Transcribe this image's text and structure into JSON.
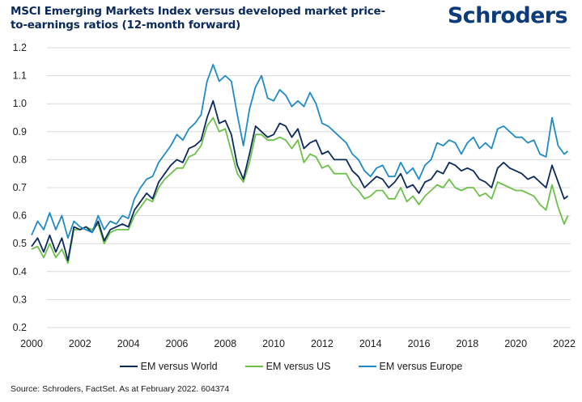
{
  "header": {
    "title": "MSCI Emerging Markets Index versus developed market price-to-earnings ratios (12-month forward)",
    "logo_text": "Schroders"
  },
  "footer": {
    "source": "Source: Schroders, FactSet. As at February 2022. 604374"
  },
  "colors": {
    "title": "#0b2a5b",
    "logo": "#0b3b7a",
    "grid": "#d9d9d9"
  },
  "chart_data": {
    "type": "line",
    "title": "MSCI Emerging Markets Index versus developed market price-to-earnings ratios (12-month forward)",
    "xlabel": "",
    "ylabel": "",
    "xlim": [
      2000,
      2022.2
    ],
    "ylim": [
      0.2,
      1.2
    ],
    "grid": true,
    "legend_position": "bottom-center",
    "x_ticks": [
      "2000",
      "2002",
      "2004",
      "2006",
      "2008",
      "2010",
      "2012",
      "2014",
      "2016",
      "2018",
      "2020",
      "2022"
    ],
    "x_tick_values": [
      2000,
      2002,
      2004,
      2006,
      2008,
      2010,
      2012,
      2014,
      2016,
      2018,
      2020,
      2022
    ],
    "y_ticks": [
      "0.2",
      "0.3",
      "0.4",
      "0.5",
      "0.6",
      "0.7",
      "0.8",
      "0.9",
      "1.0",
      "1.1",
      "1.2"
    ],
    "y_tick_values": [
      0.2,
      0.3,
      0.4,
      0.5,
      0.6,
      0.7,
      0.8,
      0.9,
      1.0,
      1.1,
      1.2
    ],
    "x": [
      2000.0,
      2000.25,
      2000.5,
      2000.75,
      2001.0,
      2001.25,
      2001.5,
      2001.75,
      2002.0,
      2002.25,
      2002.5,
      2002.75,
      2003.0,
      2003.25,
      2003.5,
      2003.75,
      2004.0,
      2004.25,
      2004.5,
      2004.75,
      2005.0,
      2005.25,
      2005.5,
      2005.75,
      2006.0,
      2006.25,
      2006.5,
      2006.75,
      2007.0,
      2007.25,
      2007.5,
      2007.75,
      2008.0,
      2008.25,
      2008.5,
      2008.75,
      2009.0,
      2009.25,
      2009.5,
      2009.75,
      2010.0,
      2010.25,
      2010.5,
      2010.75,
      2011.0,
      2011.25,
      2011.5,
      2011.75,
      2012.0,
      2012.25,
      2012.5,
      2012.75,
      2013.0,
      2013.25,
      2013.5,
      2013.75,
      2014.0,
      2014.25,
      2014.5,
      2014.75,
      2015.0,
      2015.25,
      2015.5,
      2015.75,
      2016.0,
      2016.25,
      2016.5,
      2016.75,
      2017.0,
      2017.25,
      2017.5,
      2017.75,
      2018.0,
      2018.25,
      2018.5,
      2018.75,
      2019.0,
      2019.25,
      2019.5,
      2019.75,
      2020.0,
      2020.25,
      2020.5,
      2020.75,
      2021.0,
      2021.25,
      2021.5,
      2021.75,
      2022.0,
      2022.15
    ],
    "series": [
      {
        "name": "EM versus World",
        "color": "#0b2a5b",
        "values": [
          0.49,
          0.52,
          0.47,
          0.53,
          0.47,
          0.52,
          0.44,
          0.56,
          0.55,
          0.56,
          0.54,
          0.58,
          0.51,
          0.55,
          0.56,
          0.57,
          0.56,
          0.62,
          0.65,
          0.68,
          0.66,
          0.72,
          0.75,
          0.78,
          0.8,
          0.79,
          0.84,
          0.85,
          0.87,
          0.95,
          1.01,
          0.93,
          0.94,
          0.89,
          0.78,
          0.73,
          0.82,
          0.92,
          0.9,
          0.88,
          0.89,
          0.93,
          0.92,
          0.88,
          0.91,
          0.84,
          0.86,
          0.87,
          0.82,
          0.83,
          0.8,
          0.8,
          0.8,
          0.76,
          0.74,
          0.7,
          0.72,
          0.74,
          0.73,
          0.7,
          0.72,
          0.75,
          0.7,
          0.71,
          0.68,
          0.72,
          0.73,
          0.76,
          0.75,
          0.79,
          0.78,
          0.76,
          0.77,
          0.76,
          0.73,
          0.72,
          0.7,
          0.77,
          0.79,
          0.77,
          0.76,
          0.75,
          0.73,
          0.74,
          0.72,
          0.7,
          0.78,
          0.72,
          0.66,
          0.67
        ]
      },
      {
        "name": "EM versus US",
        "color": "#6cc04a",
        "values": [
          0.48,
          0.49,
          0.45,
          0.5,
          0.45,
          0.48,
          0.43,
          0.55,
          0.55,
          0.56,
          0.55,
          0.57,
          0.5,
          0.54,
          0.55,
          0.55,
          0.55,
          0.6,
          0.63,
          0.66,
          0.65,
          0.7,
          0.73,
          0.75,
          0.77,
          0.77,
          0.81,
          0.82,
          0.85,
          0.92,
          0.95,
          0.9,
          0.91,
          0.83,
          0.75,
          0.72,
          0.79,
          0.89,
          0.89,
          0.87,
          0.87,
          0.88,
          0.87,
          0.84,
          0.87,
          0.79,
          0.82,
          0.81,
          0.77,
          0.78,
          0.75,
          0.75,
          0.75,
          0.71,
          0.69,
          0.66,
          0.67,
          0.69,
          0.69,
          0.66,
          0.66,
          0.7,
          0.65,
          0.67,
          0.64,
          0.67,
          0.69,
          0.71,
          0.7,
          0.73,
          0.7,
          0.69,
          0.7,
          0.7,
          0.67,
          0.68,
          0.66,
          0.72,
          0.71,
          0.7,
          0.69,
          0.69,
          0.68,
          0.67,
          0.64,
          0.62,
          0.71,
          0.63,
          0.57,
          0.6
        ]
      },
      {
        "name": "EM versus Europe",
        "color": "#1f8ac4",
        "values": [
          0.53,
          0.58,
          0.55,
          0.61,
          0.55,
          0.6,
          0.52,
          0.58,
          0.56,
          0.55,
          0.54,
          0.6,
          0.55,
          0.58,
          0.57,
          0.6,
          0.59,
          0.66,
          0.7,
          0.73,
          0.74,
          0.79,
          0.82,
          0.85,
          0.89,
          0.87,
          0.91,
          0.93,
          0.96,
          1.08,
          1.14,
          1.08,
          1.1,
          1.08,
          0.96,
          0.85,
          0.98,
          1.06,
          1.1,
          1.02,
          1.01,
          1.05,
          1.03,
          0.99,
          1.01,
          0.99,
          1.04,
          1.0,
          0.93,
          0.92,
          0.9,
          0.88,
          0.86,
          0.82,
          0.8,
          0.76,
          0.74,
          0.77,
          0.78,
          0.74,
          0.74,
          0.79,
          0.75,
          0.77,
          0.73,
          0.78,
          0.8,
          0.86,
          0.85,
          0.87,
          0.86,
          0.82,
          0.86,
          0.88,
          0.84,
          0.86,
          0.84,
          0.91,
          0.92,
          0.9,
          0.88,
          0.88,
          0.86,
          0.87,
          0.82,
          0.81,
          0.95,
          0.85,
          0.82,
          0.83
        ]
      }
    ]
  }
}
